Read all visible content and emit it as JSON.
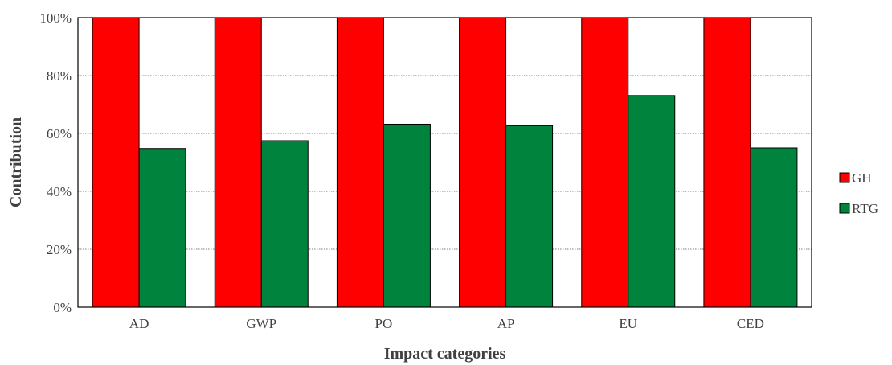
{
  "chart_data": {
    "type": "bar",
    "title": "",
    "xlabel": "Impact categories",
    "ylabel": "Contribution",
    "categories": [
      "AD",
      "GWP",
      "PO",
      "AP",
      "EU",
      "CED"
    ],
    "series": [
      {
        "name": "GH",
        "color": "#ff0000",
        "values": [
          100,
          100,
          100,
          100,
          100,
          100
        ]
      },
      {
        "name": "RTG",
        "color": "#00843d",
        "values": [
          54.8,
          57.5,
          63.2,
          62.7,
          73.1,
          55.0
        ]
      }
    ],
    "ylim": [
      0,
      100
    ],
    "yticks": [
      "0%",
      "20%",
      "40%",
      "60%",
      "80%",
      "100%"
    ],
    "grid": true,
    "legend_position": "right"
  }
}
